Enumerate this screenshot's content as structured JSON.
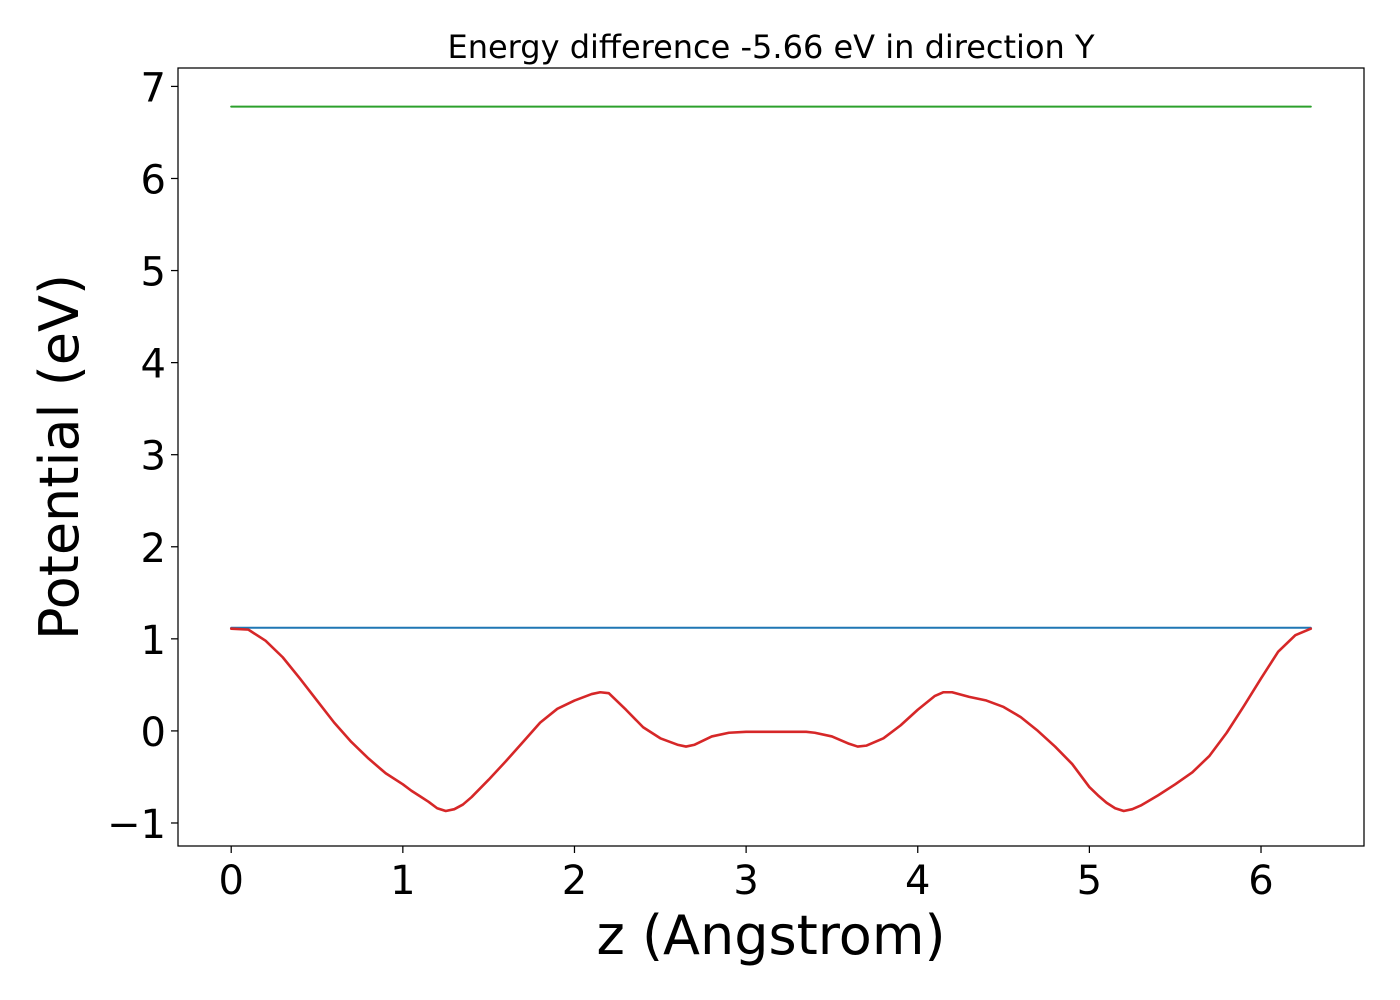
{
  "chart_data": {
    "type": "line",
    "title": "Energy difference -5.66 eV in direction Y",
    "xlabel": "z (Angstrom)",
    "ylabel": "Potential (eV)",
    "xlim": [
      -0.31,
      6.6
    ],
    "ylim": [
      -1.25,
      7.2
    ],
    "xticks": [
      0,
      1,
      2,
      3,
      4,
      5,
      6
    ],
    "yticks": [
      -1,
      0,
      1,
      2,
      3,
      4,
      5,
      6,
      7
    ],
    "xtick_labels": [
      "0",
      "1",
      "2",
      "3",
      "4",
      "5",
      "6"
    ],
    "ytick_labels": [
      "−1",
      "0",
      "1",
      "2",
      "3",
      "4",
      "5",
      "6",
      "7"
    ],
    "grid": false,
    "legend": "none",
    "series": [
      {
        "color": "#2ca02c",
        "x": [
          0,
          6.29
        ],
        "y": [
          6.78,
          6.78
        ]
      },
      {
        "color": "#1f77b4",
        "x": [
          0,
          6.29
        ],
        "y": [
          1.12,
          1.12
        ]
      },
      {
        "color": "#d62728",
        "x": [
          0,
          0.1,
          0.2,
          0.3,
          0.4,
          0.5,
          0.6,
          0.7,
          0.8,
          0.9,
          1.0,
          1.05,
          1.1,
          1.15,
          1.2,
          1.25,
          1.3,
          1.35,
          1.4,
          1.5,
          1.6,
          1.7,
          1.8,
          1.9,
          2.0,
          2.1,
          2.15,
          2.2,
          2.3,
          2.4,
          2.5,
          2.6,
          2.65,
          2.7,
          2.8,
          2.9,
          3.0,
          3.1,
          3.2,
          3.3,
          3.35,
          3.4,
          3.5,
          3.6,
          3.65,
          3.7,
          3.8,
          3.9,
          4.0,
          4.1,
          4.15,
          4.2,
          4.3,
          4.4,
          4.5,
          4.6,
          4.7,
          4.8,
          4.9,
          5.0,
          5.05,
          5.1,
          5.15,
          5.2,
          5.25,
          5.3,
          5.4,
          5.5,
          5.6,
          5.7,
          5.8,
          5.9,
          6.0,
          6.1,
          6.2,
          6.29
        ],
        "y": [
          1.11,
          1.1,
          0.98,
          0.8,
          0.57,
          0.33,
          0.09,
          -0.12,
          -0.3,
          -0.46,
          -0.58,
          -0.65,
          -0.71,
          -0.77,
          -0.84,
          -0.87,
          -0.85,
          -0.8,
          -0.72,
          -0.53,
          -0.33,
          -0.12,
          0.09,
          0.24,
          0.33,
          0.4,
          0.42,
          0.41,
          0.23,
          0.04,
          -0.08,
          -0.15,
          -0.17,
          -0.15,
          -0.06,
          -0.02,
          -0.01,
          -0.01,
          -0.01,
          -0.01,
          -0.01,
          -0.02,
          -0.06,
          -0.14,
          -0.17,
          -0.16,
          -0.08,
          0.06,
          0.23,
          0.38,
          0.42,
          0.42,
          0.37,
          0.33,
          0.26,
          0.15,
          0.0,
          -0.17,
          -0.36,
          -0.61,
          -0.7,
          -0.78,
          -0.84,
          -0.87,
          -0.85,
          -0.81,
          -0.7,
          -0.58,
          -0.45,
          -0.27,
          -0.02,
          0.27,
          0.57,
          0.86,
          1.04,
          1.11
        ]
      }
    ]
  }
}
